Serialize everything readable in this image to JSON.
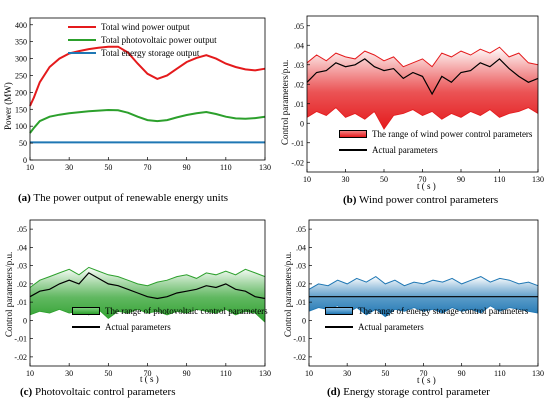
{
  "panels": [
    {
      "caption_letter": "(a)",
      "caption_text": " The power output of renewable energy units",
      "ylabel": "Power (MW)",
      "xlabel": "",
      "legend": [
        "Total wind power output",
        "Total photovoltaic power output",
        "Total energy storage output"
      ]
    },
    {
      "caption_letter": "(b)",
      "caption_text": " Wind power control parameters",
      "ylabel": "Control parameters/p.u.",
      "xlabel": "t ( s )",
      "legend": [
        "The range of wind power control parameters",
        "Actual parameters"
      ]
    },
    {
      "caption_letter": "(c)",
      "caption_text": " Photovoltaic control parameters",
      "ylabel": "Control parameters/p.u.",
      "xlabel": "t ( s )",
      "legend": [
        "The range of photovoltaic control parameters",
        "Actual parameters"
      ]
    },
    {
      "caption_letter": "(d)",
      "caption_text": " Energy storage control parameter",
      "ylabel": "Control parameters/p.u.",
      "xlabel": "t ( s )",
      "legend": [
        "The range of energy storage control parameters",
        "Actual parameters"
      ]
    }
  ],
  "chart_data": [
    {
      "type": "line",
      "title": "",
      "xlabel": "",
      "ylabel": "Power (MW)",
      "xlim": [
        10,
        130
      ],
      "ylim": [
        0,
        420
      ],
      "xticks": [
        10,
        30,
        50,
        70,
        90,
        110,
        130
      ],
      "yticks": [
        0,
        50,
        100,
        150,
        200,
        250,
        300,
        350,
        400
      ],
      "legend_position": "top-center",
      "grid": false,
      "colors": {
        "wind": "#e41a1c",
        "pv": "#2ca02c",
        "storage": "#1f77b4"
      },
      "x": [
        10,
        12,
        15,
        20,
        25,
        30,
        35,
        40,
        45,
        50,
        55,
        60,
        65,
        70,
        75,
        80,
        85,
        90,
        95,
        100,
        105,
        110,
        115,
        120,
        125,
        130
      ],
      "series": [
        {
          "name": "Total wind power output",
          "values": [
            160,
            185,
            230,
            275,
            300,
            315,
            322,
            328,
            332,
            335,
            335,
            318,
            285,
            255,
            240,
            250,
            270,
            290,
            302,
            310,
            300,
            285,
            275,
            268,
            265,
            270
          ]
        },
        {
          "name": "Total photovoltaic power output",
          "values": [
            80,
            95,
            115,
            128,
            134,
            138,
            141,
            144,
            146,
            148,
            147,
            140,
            128,
            118,
            115,
            118,
            126,
            133,
            138,
            142,
            136,
            128,
            123,
            122,
            124,
            128
          ]
        },
        {
          "name": "Total energy storage output",
          "values": [
            52,
            52,
            52,
            52,
            52,
            52,
            52,
            52,
            52,
            52,
            52,
            52,
            52,
            52,
            52,
            52,
            52,
            52,
            52,
            52,
            52,
            52,
            52,
            52,
            52,
            52
          ]
        }
      ]
    },
    {
      "type": "area",
      "title": "",
      "xlabel": "t ( s )",
      "ylabel": "Control parameters/p.u.",
      "xlim": [
        10,
        130
      ],
      "ylim": [
        -0.025,
        0.055
      ],
      "xticks": [
        10,
        30,
        50,
        70,
        90,
        110,
        130
      ],
      "yticks": [
        -0.02,
        -0.01,
        0,
        0.01,
        0.02,
        0.03,
        0.04,
        0.05
      ],
      "legend_position": "bottom",
      "grid": false,
      "colors": {
        "band": "#e41a1c",
        "actual": "#000000"
      },
      "x": [
        10,
        15,
        20,
        25,
        30,
        35,
        40,
        45,
        50,
        55,
        60,
        65,
        70,
        75,
        80,
        85,
        90,
        95,
        100,
        105,
        110,
        115,
        120,
        125,
        130
      ],
      "upper": [
        0.031,
        0.035,
        0.032,
        0.036,
        0.034,
        0.033,
        0.037,
        0.035,
        0.032,
        0.034,
        0.029,
        0.031,
        0.033,
        0.029,
        0.036,
        0.034,
        0.037,
        0.035,
        0.038,
        0.036,
        0.039,
        0.034,
        0.036,
        0.031,
        0.03
      ],
      "lower": [
        0.003,
        0.006,
        0.004,
        0.008,
        0.003,
        0.005,
        0.002,
        0.006,
        -0.003,
        0.004,
        0.005,
        0.007,
        0.004,
        0.006,
        0.002,
        0.005,
        0.003,
        0.006,
        0.004,
        0.007,
        0.003,
        0.005,
        0.006,
        0.008,
        0.005
      ],
      "series": [
        {
          "name": "Actual parameters",
          "values": [
            0.021,
            0.026,
            0.027,
            0.031,
            0.029,
            0.03,
            0.033,
            0.029,
            0.027,
            0.028,
            0.023,
            0.026,
            0.024,
            0.015,
            0.024,
            0.021,
            0.026,
            0.027,
            0.031,
            0.029,
            0.033,
            0.028,
            0.024,
            0.021,
            0.023
          ]
        }
      ]
    },
    {
      "type": "area",
      "title": "",
      "xlabel": "t ( s )",
      "ylabel": "Control parameters/p.u.",
      "xlim": [
        10,
        130
      ],
      "ylim": [
        -0.025,
        0.055
      ],
      "xticks": [
        10,
        30,
        50,
        70,
        90,
        110,
        130
      ],
      "yticks": [
        -0.02,
        -0.01,
        0,
        0.01,
        0.02,
        0.03,
        0.04,
        0.05
      ],
      "legend_position": "bottom",
      "grid": false,
      "colors": {
        "band": "#2ca02c",
        "actual": "#000000"
      },
      "x": [
        10,
        15,
        20,
        25,
        30,
        35,
        40,
        45,
        50,
        55,
        60,
        65,
        70,
        75,
        80,
        85,
        90,
        95,
        100,
        105,
        110,
        115,
        120,
        125,
        130
      ],
      "upper": [
        0.018,
        0.022,
        0.024,
        0.026,
        0.028,
        0.025,
        0.029,
        0.027,
        0.025,
        0.024,
        0.022,
        0.02,
        0.019,
        0.021,
        0.022,
        0.024,
        0.025,
        0.023,
        0.026,
        0.025,
        0.027,
        0.025,
        0.028,
        0.026,
        0.024
      ],
      "lower": [
        0.003,
        0.005,
        0.004,
        0.006,
        0.004,
        0.005,
        0.003,
        0.006,
        0.001,
        0.005,
        0.004,
        0.006,
        0.004,
        0.005,
        0.003,
        0.005,
        0.004,
        0.006,
        0.005,
        0.004,
        0.006,
        0.003,
        0.005,
        0.004,
        -0.001
      ],
      "series": [
        {
          "name": "Actual parameters",
          "values": [
            0.013,
            0.016,
            0.017,
            0.02,
            0.022,
            0.02,
            0.026,
            0.023,
            0.02,
            0.019,
            0.017,
            0.015,
            0.013,
            0.012,
            0.013,
            0.015,
            0.016,
            0.017,
            0.019,
            0.018,
            0.02,
            0.017,
            0.016,
            0.013,
            0.012
          ]
        }
      ]
    },
    {
      "type": "area",
      "title": "",
      "xlabel": "t ( s )",
      "ylabel": "Control parameters/p.u.",
      "xlim": [
        10,
        130
      ],
      "ylim": [
        -0.025,
        0.055
      ],
      "xticks": [
        10,
        30,
        50,
        70,
        90,
        110,
        130
      ],
      "yticks": [
        -0.02,
        -0.01,
        0,
        0.01,
        0.02,
        0.03,
        0.04,
        0.05
      ],
      "legend_position": "bottom",
      "grid": false,
      "colors": {
        "band": "#1f77b4",
        "actual": "#000000"
      },
      "x": [
        10,
        15,
        20,
        25,
        30,
        35,
        40,
        45,
        50,
        55,
        60,
        65,
        70,
        75,
        80,
        85,
        90,
        95,
        100,
        105,
        110,
        115,
        120,
        125,
        130
      ],
      "upper": [
        0.017,
        0.02,
        0.019,
        0.022,
        0.02,
        0.023,
        0.021,
        0.024,
        0.02,
        0.022,
        0.019,
        0.021,
        0.02,
        0.022,
        0.021,
        0.023,
        0.02,
        0.022,
        0.024,
        0.021,
        0.023,
        0.022,
        0.02,
        0.021,
        0.019
      ],
      "lower": [
        0.005,
        0.007,
        0.006,
        0.008,
        0.004,
        0.007,
        0.003,
        0.006,
        0.002,
        0.006,
        0.005,
        0.007,
        0.005,
        0.006,
        0.004,
        0.007,
        0.005,
        0.006,
        0.004,
        0.008,
        0.005,
        0.007,
        0.006,
        0.005,
        0.004
      ],
      "series": [
        {
          "name": "Actual parameters",
          "values": [
            0.013,
            0.013,
            0.013,
            0.013,
            0.013,
            0.013,
            0.013,
            0.013,
            0.013,
            0.013,
            0.013,
            0.013,
            0.013,
            0.013,
            0.013,
            0.013,
            0.013,
            0.013,
            0.013,
            0.013,
            0.013,
            0.013,
            0.013,
            0.013,
            0.013
          ]
        }
      ]
    }
  ]
}
